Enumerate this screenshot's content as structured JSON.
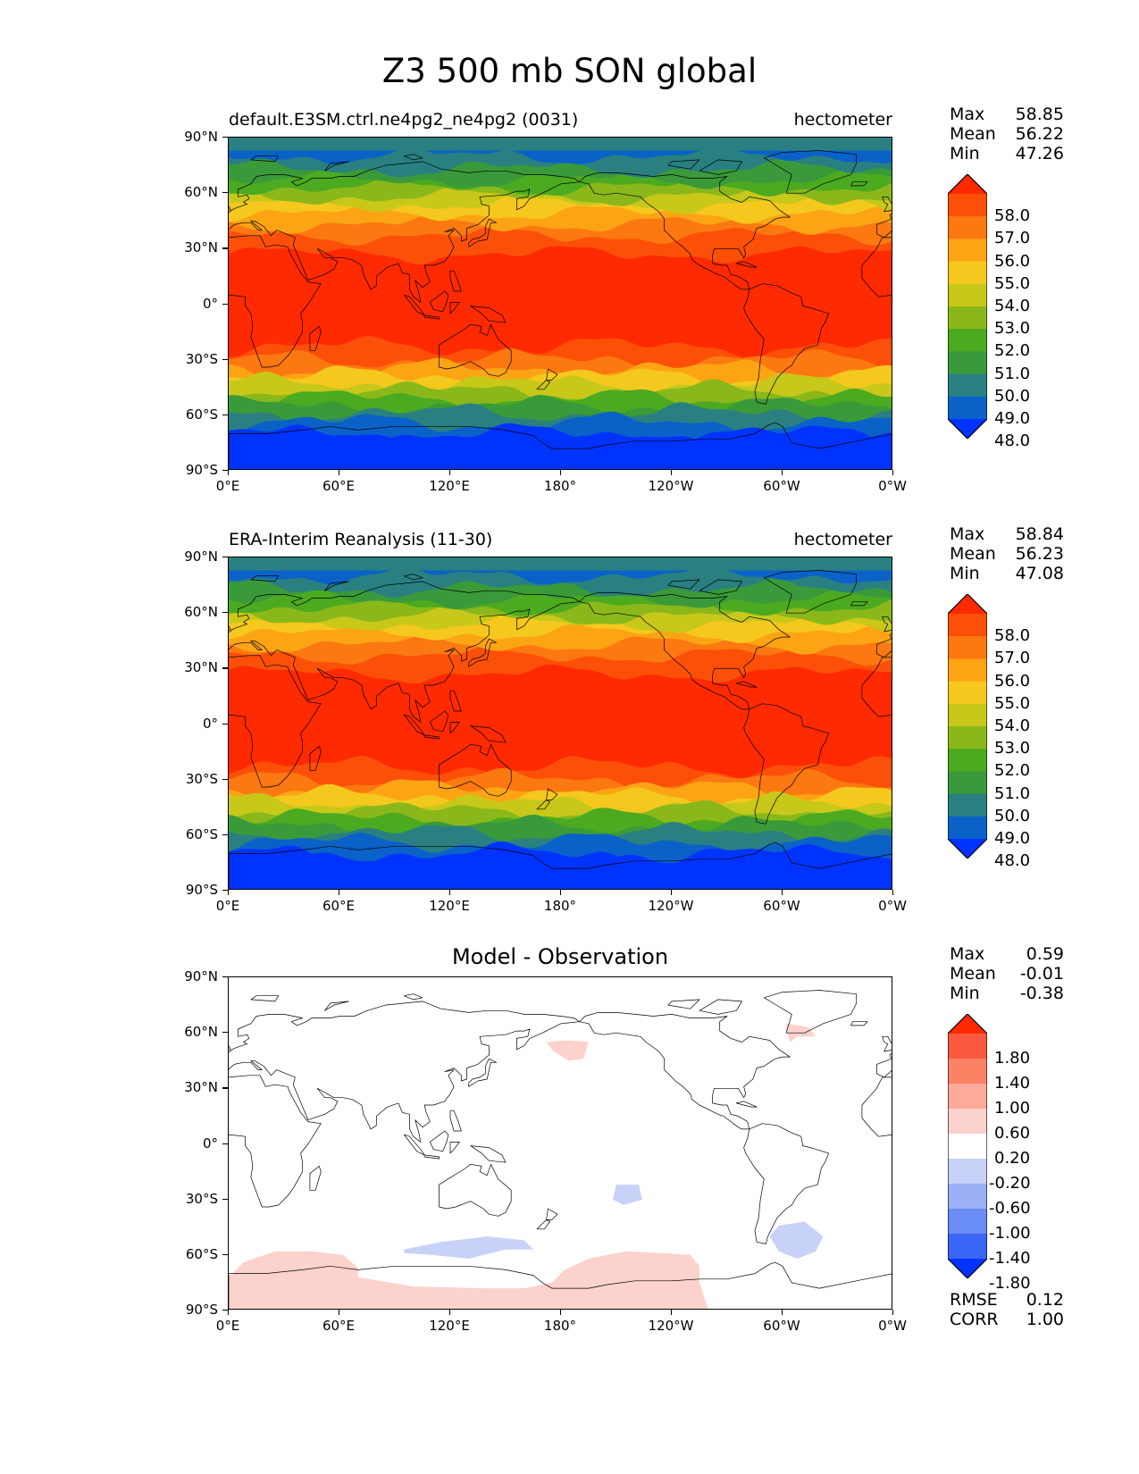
{
  "figure_title": "Z3 500 mb SON global",
  "lat_ticks": [
    "90°N",
    "60°N",
    "30°N",
    "0°",
    "30°S",
    "60°S",
    "90°S"
  ],
  "lon_ticks": [
    "0°E",
    "60°E",
    "120°E",
    "180°",
    "120°W",
    "60°W",
    "0°W"
  ],
  "panels": [
    {
      "label_left": "default.E3SM.ctrl.ne4pg2_ne4pg2 (0031)",
      "label_right": "hectometer",
      "stats": [
        {
          "name": "Max",
          "value": "58.85"
        },
        {
          "name": "Mean",
          "value": "56.22"
        },
        {
          "name": "Min",
          "value": "47.26"
        }
      ],
      "colorbar_labels": [
        "58.0",
        "57.0",
        "56.0",
        "55.0",
        "54.0",
        "53.0",
        "52.0",
        "51.0",
        "50.0",
        "49.0",
        "48.0"
      ]
    },
    {
      "label_left": "ERA-Interim Reanalysis (11-30)",
      "label_right": "hectometer",
      "stats": [
        {
          "name": "Max",
          "value": "58.84"
        },
        {
          "name": "Mean",
          "value": "56.23"
        },
        {
          "name": "Min",
          "value": "47.08"
        }
      ],
      "colorbar_labels": [
        "58.0",
        "57.0",
        "56.0",
        "55.0",
        "54.0",
        "53.0",
        "52.0",
        "51.0",
        "50.0",
        "49.0",
        "48.0"
      ]
    },
    {
      "title": "Model - Observation",
      "stats": [
        {
          "name": "Max",
          "value": "0.59"
        },
        {
          "name": "Mean",
          "value": "-0.01"
        },
        {
          "name": "Min",
          "value": "-0.38"
        }
      ],
      "colorbar_labels": [
        "1.80",
        "1.40",
        "1.00",
        "0.60",
        "0.20",
        "-0.20",
        "-0.60",
        "-1.00",
        "-1.40",
        "-1.80"
      ],
      "metrics": [
        {
          "name": "RMSE",
          "value": "0.12"
        },
        {
          "name": "CORR",
          "value": "1.00"
        }
      ]
    }
  ],
  "colors": {
    "field_levels": [
      "#0033ff",
      "#0a62c8",
      "#2a8080",
      "#3a9a3a",
      "#4caa20",
      "#8ab81a",
      "#c8c81a",
      "#f5c81e",
      "#fca414",
      "#fc7810",
      "#fc5008",
      "#ff2a00"
    ],
    "diff_levels": [
      "#0033ff",
      "#3a66f5",
      "#6a8cf5",
      "#9aaff5",
      "#c8d2f8",
      "#ffffff",
      "#fcd2cc",
      "#fcaa9a",
      "#fc8266",
      "#fc5a40",
      "#ff2a00"
    ],
    "coast": "#000000"
  }
}
